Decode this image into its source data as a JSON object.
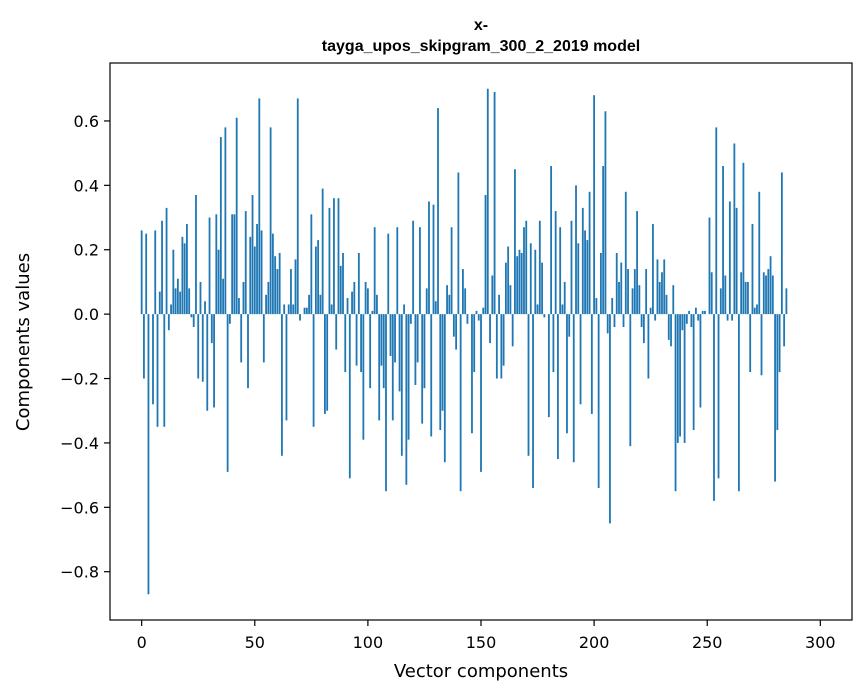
{
  "chart_data": {
    "type": "bar",
    "title_lines": [
      "x-",
      "tayga_upos_skipgram_300_2_2019 model"
    ],
    "xlabel": "Vector components",
    "ylabel": "Components values",
    "xlim": [
      -14,
      314
    ],
    "ylim": [
      -0.95,
      0.78
    ],
    "xticks": [
      0,
      50,
      100,
      150,
      200,
      250,
      300
    ],
    "yticks": [
      -0.8,
      -0.6,
      -0.4,
      -0.2,
      0.0,
      0.2,
      0.4,
      0.6
    ],
    "ytick_labels": [
      "−0.8",
      "−0.6",
      "−0.4",
      "−0.2",
      "0.0",
      "0.2",
      "0.4",
      "0.6"
    ],
    "color": "#1f77b4",
    "values": [
      0.26,
      -0.2,
      0.25,
      -0.87,
      0.0,
      -0.28,
      0.26,
      -0.35,
      0.07,
      0.29,
      -0.35,
      0.33,
      -0.05,
      0.03,
      0.2,
      0.08,
      0.11,
      0.07,
      0.24,
      0.22,
      0.28,
      0.08,
      -0.01,
      -0.04,
      0.37,
      -0.2,
      0.1,
      -0.21,
      0.04,
      -0.3,
      0.3,
      -0.09,
      -0.29,
      0.31,
      0.2,
      0.55,
      0.11,
      0.58,
      -0.49,
      -0.03,
      0.31,
      0.31,
      0.61,
      0.05,
      -0.15,
      0.1,
      0.32,
      -0.23,
      0.24,
      0.37,
      0.21,
      0.28,
      0.67,
      0.26,
      -0.15,
      0.06,
      0.1,
      0.58,
      0.25,
      0.18,
      0.14,
      0.19,
      -0.44,
      0.03,
      -0.33,
      0.03,
      0.14,
      0.03,
      0.17,
      0.67,
      -0.02,
      0.0,
      0.02,
      0.02,
      0.06,
      0.31,
      -0.35,
      0.21,
      0.23,
      0.06,
      0.39,
      -0.31,
      -0.3,
      0.33,
      0.03,
      0.36,
      -0.11,
      0.36,
      0.15,
      0.19,
      -0.18,
      0.05,
      -0.51,
      0.07,
      0.1,
      -0.16,
      0.19,
      -0.18,
      -0.39,
      0.1,
      0.08,
      -0.23,
      0.01,
      0.27,
      0.06,
      -0.33,
      -0.16,
      -0.23,
      -0.55,
      0.25,
      -0.13,
      -0.33,
      -0.15,
      0.27,
      -0.24,
      -0.44,
      0.03,
      -0.53,
      -0.39,
      -0.03,
      0.29,
      -0.22,
      -0.15,
      0.27,
      -0.34,
      -0.23,
      0.08,
      0.35,
      -0.38,
      0.34,
      0.04,
      0.64,
      -0.36,
      -0.3,
      -0.46,
      0.09,
      0.06,
      0.27,
      -0.07,
      -0.11,
      0.44,
      -0.55,
      0.14,
      0.08,
      -0.03,
      0.0,
      -0.37,
      -0.18,
      0.01,
      -0.02,
      -0.49,
      0.02,
      0.37,
      0.7,
      -0.09,
      0.12,
      0.69,
      -0.2,
      0.06,
      -0.2,
      -0.16,
      0.16,
      0.21,
      0.09,
      -0.1,
      0.45,
      0.18,
      0.2,
      0.19,
      0.27,
      0.29,
      -0.44,
      0.22,
      -0.54,
      0.2,
      0.03,
      0.29,
      0.16,
      -0.01,
      0.0,
      -0.32,
      0.46,
      -0.18,
      0.32,
      -0.45,
      0.27,
      0.03,
      0.1,
      -0.37,
      -0.07,
      0.29,
      -0.46,
      0.4,
      0.22,
      -0.28,
      0.33,
      0.26,
      0.23,
      0.38,
      -0.31,
      0.68,
      0.05,
      -0.54,
      0.19,
      0.46,
      0.63,
      -0.06,
      -0.65,
      0.05,
      -0.04,
      0.19,
      0.1,
      0.16,
      -0.04,
      0.38,
      0.14,
      -0.41,
      0.08,
      0.14,
      0.32,
      0.09,
      -0.04,
      -0.09,
      0.14,
      -0.2,
      0.02,
      0.28,
      -0.02,
      0.17,
      0.1,
      0.13,
      0.17,
      0.06,
      -0.08,
      -0.1,
      0.09,
      -0.55,
      -0.4,
      -0.38,
      -0.05,
      -0.4,
      -0.03,
      0.01,
      -0.04,
      -0.36,
      0.02,
      -0.02,
      -0.29,
      0.01,
      0.01,
      0.0,
      0.3,
      0.13,
      -0.58,
      0.58,
      -0.51,
      0.08,
      0.46,
      0.12,
      -0.02,
      0.35,
      -0.02,
      0.53,
      0.33,
      -0.55,
      0.13,
      0.47,
      0.1,
      0.1,
      -0.18,
      0.28,
      0.02,
      0.03,
      0.38,
      -0.19,
      0.13,
      0.12,
      0.14,
      0.18,
      0.12,
      -0.52,
      -0.36,
      -0.18,
      0.44,
      -0.1,
      0.08
    ]
  }
}
